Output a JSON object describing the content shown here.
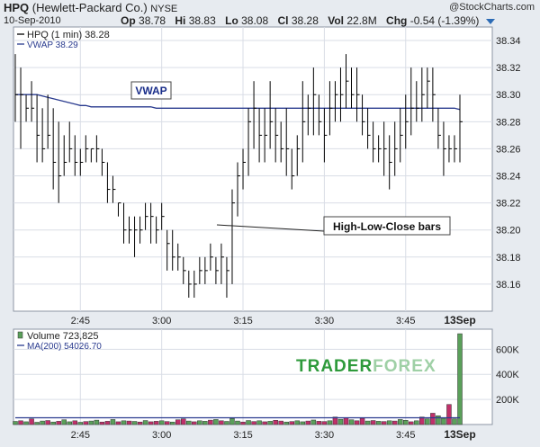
{
  "header": {
    "symbol": "HPQ",
    "company": "(Hewlett-Packard Co.)",
    "exchange": "NYSE",
    "copyright": "@StockCharts.com",
    "date": "10-Sep-2010",
    "stats": [
      {
        "label": "Op",
        "value": "38.78"
      },
      {
        "label": "Hi",
        "value": "38.83"
      },
      {
        "label": "Lo",
        "value": "38.08"
      },
      {
        "label": "Cl",
        "value": "38.28"
      },
      {
        "label": "Vol",
        "value": "22.8M"
      },
      {
        "label": "Chg",
        "value": "-0.54 (-1.39%)"
      }
    ]
  },
  "price_legend": [
    {
      "text": "HPQ (1 min) 38.28",
      "color": "#000000",
      "swatch": "line"
    },
    {
      "text": "VWAP 38.29",
      "color": "#2a3b8f",
      "swatch": "line"
    }
  ],
  "volume_legend": [
    {
      "text": "Volume 723,825",
      "color": "#000000",
      "swatch": "bar"
    },
    {
      "text": "MA(200) 54026.70",
      "color": "#2a3b8f",
      "swatch": "line"
    }
  ],
  "annotations": {
    "vwap_label": "VWAP",
    "hlc_label": "High-Low-Close bars"
  },
  "watermark": {
    "part1": "TRADER",
    "part2": "FOREX",
    "color1": "#2e9a3b",
    "color2": "#9fd0a6"
  },
  "colors": {
    "price": "#000000",
    "vwap": "#2a3b8f",
    "vol_up": "#5aa05a",
    "vol_down": "#c0306a",
    "ma": "#2a3b8f",
    "background": "#ffffff",
    "grid": "#d9dde6"
  },
  "chart_data": {
    "type": "line",
    "price_chart": {
      "style": "high-low-close bars",
      "yticks": [
        "38.34",
        "38.32",
        "38.30",
        "38.28",
        "38.26",
        "38.24",
        "38.22",
        "38.20",
        "38.18",
        "38.16"
      ],
      "ylim": [
        38.14,
        38.35
      ],
      "xticks": [
        "2:45",
        "3:00",
        "3:15",
        "3:30",
        "3:45",
        "13Sep"
      ],
      "bars": [
        {
          "h": 38.33,
          "l": 38.28,
          "c": 38.3
        },
        {
          "h": 38.32,
          "l": 38.26,
          "c": 38.3
        },
        {
          "h": 38.3,
          "l": 38.28,
          "c": 38.29
        },
        {
          "h": 38.31,
          "l": 38.28,
          "c": 38.29
        },
        {
          "h": 38.3,
          "l": 38.25,
          "c": 38.27
        },
        {
          "h": 38.29,
          "l": 38.25,
          "c": 38.26
        },
        {
          "h": 38.3,
          "l": 38.26,
          "c": 38.27
        },
        {
          "h": 38.29,
          "l": 38.23,
          "c": 38.25
        },
        {
          "h": 38.28,
          "l": 38.22,
          "c": 38.24
        },
        {
          "h": 38.27,
          "l": 38.24,
          "c": 38.25
        },
        {
          "h": 38.28,
          "l": 38.25,
          "c": 38.26
        },
        {
          "h": 38.27,
          "l": 38.24,
          "c": 38.25
        },
        {
          "h": 38.26,
          "l": 38.24,
          "c": 38.25
        },
        {
          "h": 38.27,
          "l": 38.25,
          "c": 38.26
        },
        {
          "h": 38.26,
          "l": 38.25,
          "c": 38.26
        },
        {
          "h": 38.27,
          "l": 38.25,
          "c": 38.26
        },
        {
          "h": 38.26,
          "l": 38.24,
          "c": 38.25
        },
        {
          "h": 38.25,
          "l": 38.22,
          "c": 38.23
        },
        {
          "h": 38.24,
          "l": 38.22,
          "c": 38.23
        },
        {
          "h": 38.22,
          "l": 38.21,
          "c": 38.22
        },
        {
          "h": 38.22,
          "l": 38.19,
          "c": 38.2
        },
        {
          "h": 38.21,
          "l": 38.19,
          "c": 38.2
        },
        {
          "h": 38.21,
          "l": 38.18,
          "c": 38.2
        },
        {
          "h": 38.21,
          "l": 38.19,
          "c": 38.2
        },
        {
          "h": 38.22,
          "l": 38.2,
          "c": 38.21
        },
        {
          "h": 38.22,
          "l": 38.19,
          "c": 38.21
        },
        {
          "h": 38.21,
          "l": 38.19,
          "c": 38.2
        },
        {
          "h": 38.22,
          "l": 38.2,
          "c": 38.21
        },
        {
          "h": 38.2,
          "l": 38.17,
          "c": 38.19
        },
        {
          "h": 38.2,
          "l": 38.17,
          "c": 38.18
        },
        {
          "h": 38.19,
          "l": 38.17,
          "c": 38.18
        },
        {
          "h": 38.18,
          "l": 38.16,
          "c": 38.17
        },
        {
          "h": 38.17,
          "l": 38.15,
          "c": 38.16
        },
        {
          "h": 38.17,
          "l": 38.15,
          "c": 38.16
        },
        {
          "h": 38.18,
          "l": 38.16,
          "c": 38.17
        },
        {
          "h": 38.18,
          "l": 38.16,
          "c": 38.17
        },
        {
          "h": 38.19,
          "l": 38.17,
          "c": 38.18
        },
        {
          "h": 38.18,
          "l": 38.16,
          "c": 38.17
        },
        {
          "h": 38.19,
          "l": 38.16,
          "c": 38.18
        },
        {
          "h": 38.18,
          "l": 38.15,
          "c": 38.17
        },
        {
          "h": 38.23,
          "l": 38.16,
          "c": 38.22
        },
        {
          "h": 38.25,
          "l": 38.21,
          "c": 38.24
        },
        {
          "h": 38.26,
          "l": 38.23,
          "c": 38.25
        },
        {
          "h": 38.29,
          "l": 38.24,
          "c": 38.28
        },
        {
          "h": 38.31,
          "l": 38.26,
          "c": 38.29
        },
        {
          "h": 38.29,
          "l": 38.25,
          "c": 38.27
        },
        {
          "h": 38.29,
          "l": 38.25,
          "c": 38.27
        },
        {
          "h": 38.31,
          "l": 38.26,
          "c": 38.28
        },
        {
          "h": 38.29,
          "l": 38.25,
          "c": 38.27
        },
        {
          "h": 38.28,
          "l": 38.25,
          "c": 38.26
        },
        {
          "h": 38.29,
          "l": 38.24,
          "c": 38.26
        },
        {
          "h": 38.26,
          "l": 38.23,
          "c": 38.24
        },
        {
          "h": 38.27,
          "l": 38.24,
          "c": 38.26
        },
        {
          "h": 38.31,
          "l": 38.25,
          "c": 38.28
        },
        {
          "h": 38.3,
          "l": 38.27,
          "c": 38.29
        },
        {
          "h": 38.32,
          "l": 38.27,
          "c": 38.3
        },
        {
          "h": 38.3,
          "l": 38.27,
          "c": 38.28
        },
        {
          "h": 38.29,
          "l": 38.25,
          "c": 38.27
        },
        {
          "h": 38.31,
          "l": 38.27,
          "c": 38.29
        },
        {
          "h": 38.31,
          "l": 38.28,
          "c": 38.3
        },
        {
          "h": 38.32,
          "l": 38.28,
          "c": 38.3
        },
        {
          "h": 38.33,
          "l": 38.29,
          "c": 38.31
        },
        {
          "h": 38.32,
          "l": 38.29,
          "c": 38.3
        },
        {
          "h": 38.32,
          "l": 38.28,
          "c": 38.3
        },
        {
          "h": 38.3,
          "l": 38.27,
          "c": 38.28
        },
        {
          "h": 38.29,
          "l": 38.26,
          "c": 38.27
        },
        {
          "h": 38.28,
          "l": 38.25,
          "c": 38.26
        },
        {
          "h": 38.27,
          "l": 38.25,
          "c": 38.26
        },
        {
          "h": 38.28,
          "l": 38.24,
          "c": 38.26
        },
        {
          "h": 38.27,
          "l": 38.23,
          "c": 38.25
        },
        {
          "h": 38.28,
          "l": 38.24,
          "c": 38.26
        },
        {
          "h": 38.29,
          "l": 38.25,
          "c": 38.27
        },
        {
          "h": 38.3,
          "l": 38.26,
          "c": 38.28
        },
        {
          "h": 38.32,
          "l": 38.27,
          "c": 38.29
        },
        {
          "h": 38.31,
          "l": 38.28,
          "c": 38.29
        },
        {
          "h": 38.32,
          "l": 38.28,
          "c": 38.3
        },
        {
          "h": 38.32,
          "l": 38.29,
          "c": 38.31
        },
        {
          "h": 38.32,
          "l": 38.28,
          "c": 38.3
        },
        {
          "h": 38.29,
          "l": 38.26,
          "c": 38.27
        },
        {
          "h": 38.28,
          "l": 38.24,
          "c": 38.26
        },
        {
          "h": 38.27,
          "l": 38.25,
          "c": 38.26
        },
        {
          "h": 38.27,
          "l": 38.25,
          "c": 38.26
        },
        {
          "h": 38.3,
          "l": 38.25,
          "c": 38.28
        }
      ],
      "vwap": [
        38.3,
        38.3,
        38.3,
        38.3,
        38.3,
        38.299,
        38.298,
        38.297,
        38.296,
        38.295,
        38.294,
        38.293,
        38.292,
        38.292,
        38.291,
        38.291,
        38.291,
        38.291,
        38.291,
        38.291,
        38.291,
        38.291,
        38.291,
        38.291,
        38.291,
        38.291,
        38.29,
        38.29,
        38.29,
        38.29,
        38.29,
        38.29,
        38.29,
        38.29,
        38.29,
        38.29,
        38.29,
        38.29,
        38.29,
        38.29,
        38.29,
        38.29,
        38.29,
        38.29,
        38.29,
        38.29,
        38.29,
        38.29,
        38.29,
        38.29,
        38.29,
        38.29,
        38.29,
        38.29,
        38.29,
        38.29,
        38.29,
        38.29,
        38.29,
        38.29,
        38.29,
        38.29,
        38.29,
        38.29,
        38.29,
        38.29,
        38.29,
        38.29,
        38.29,
        38.29,
        38.29,
        38.29,
        38.29,
        38.29,
        38.29,
        38.29,
        38.29,
        38.29,
        38.29,
        38.29,
        38.29,
        38.29,
        38.289
      ]
    },
    "volume_chart": {
      "yticks": [
        "600K",
        "400K",
        "200K"
      ],
      "ylim": [
        0,
        760000
      ],
      "ma200": 54026.7,
      "volumes": [
        25000,
        30000,
        22000,
        45000,
        18000,
        28000,
        32000,
        20000,
        26000,
        38000,
        22000,
        30000,
        18000,
        24000,
        28000,
        35000,
        20000,
        26000,
        40000,
        22000,
        30000,
        28000,
        25000,
        20000,
        32000,
        22000,
        26000,
        30000,
        24000,
        20000,
        38000,
        45000,
        28000,
        22000,
        30000,
        26000,
        35000,
        40000,
        30000,
        25000,
        48000,
        28000,
        20000,
        32000,
        24000,
        30000,
        22000,
        26000,
        34000,
        28000,
        20000,
        24000,
        30000,
        22000,
        28000,
        36000,
        26000,
        24000,
        30000,
        60000,
        42000,
        55000,
        38000,
        30000,
        50000,
        28000,
        32000,
        26000,
        24000,
        30000,
        28000,
        40000,
        34000,
        22000,
        30000,
        60000,
        45000,
        90000,
        70000,
        50000,
        160000,
        45000,
        723825
      ],
      "up": [
        1,
        0,
        1,
        0,
        1,
        1,
        0,
        1,
        0,
        1,
        1,
        0,
        1,
        0,
        1,
        1,
        0,
        0,
        1,
        0,
        1,
        0,
        1,
        0,
        1,
        0,
        0,
        1,
        0,
        1,
        0,
        0,
        1,
        0,
        1,
        1,
        0,
        1,
        0,
        1,
        1,
        1,
        0,
        1,
        0,
        1,
        0,
        1,
        0,
        0,
        1,
        0,
        1,
        1,
        0,
        1,
        0,
        0,
        1,
        0,
        1,
        0,
        1,
        0,
        0,
        1,
        0,
        1,
        0,
        1,
        0,
        1,
        1,
        0,
        1,
        0,
        1,
        0,
        1,
        1,
        0,
        1,
        1
      ]
    }
  }
}
